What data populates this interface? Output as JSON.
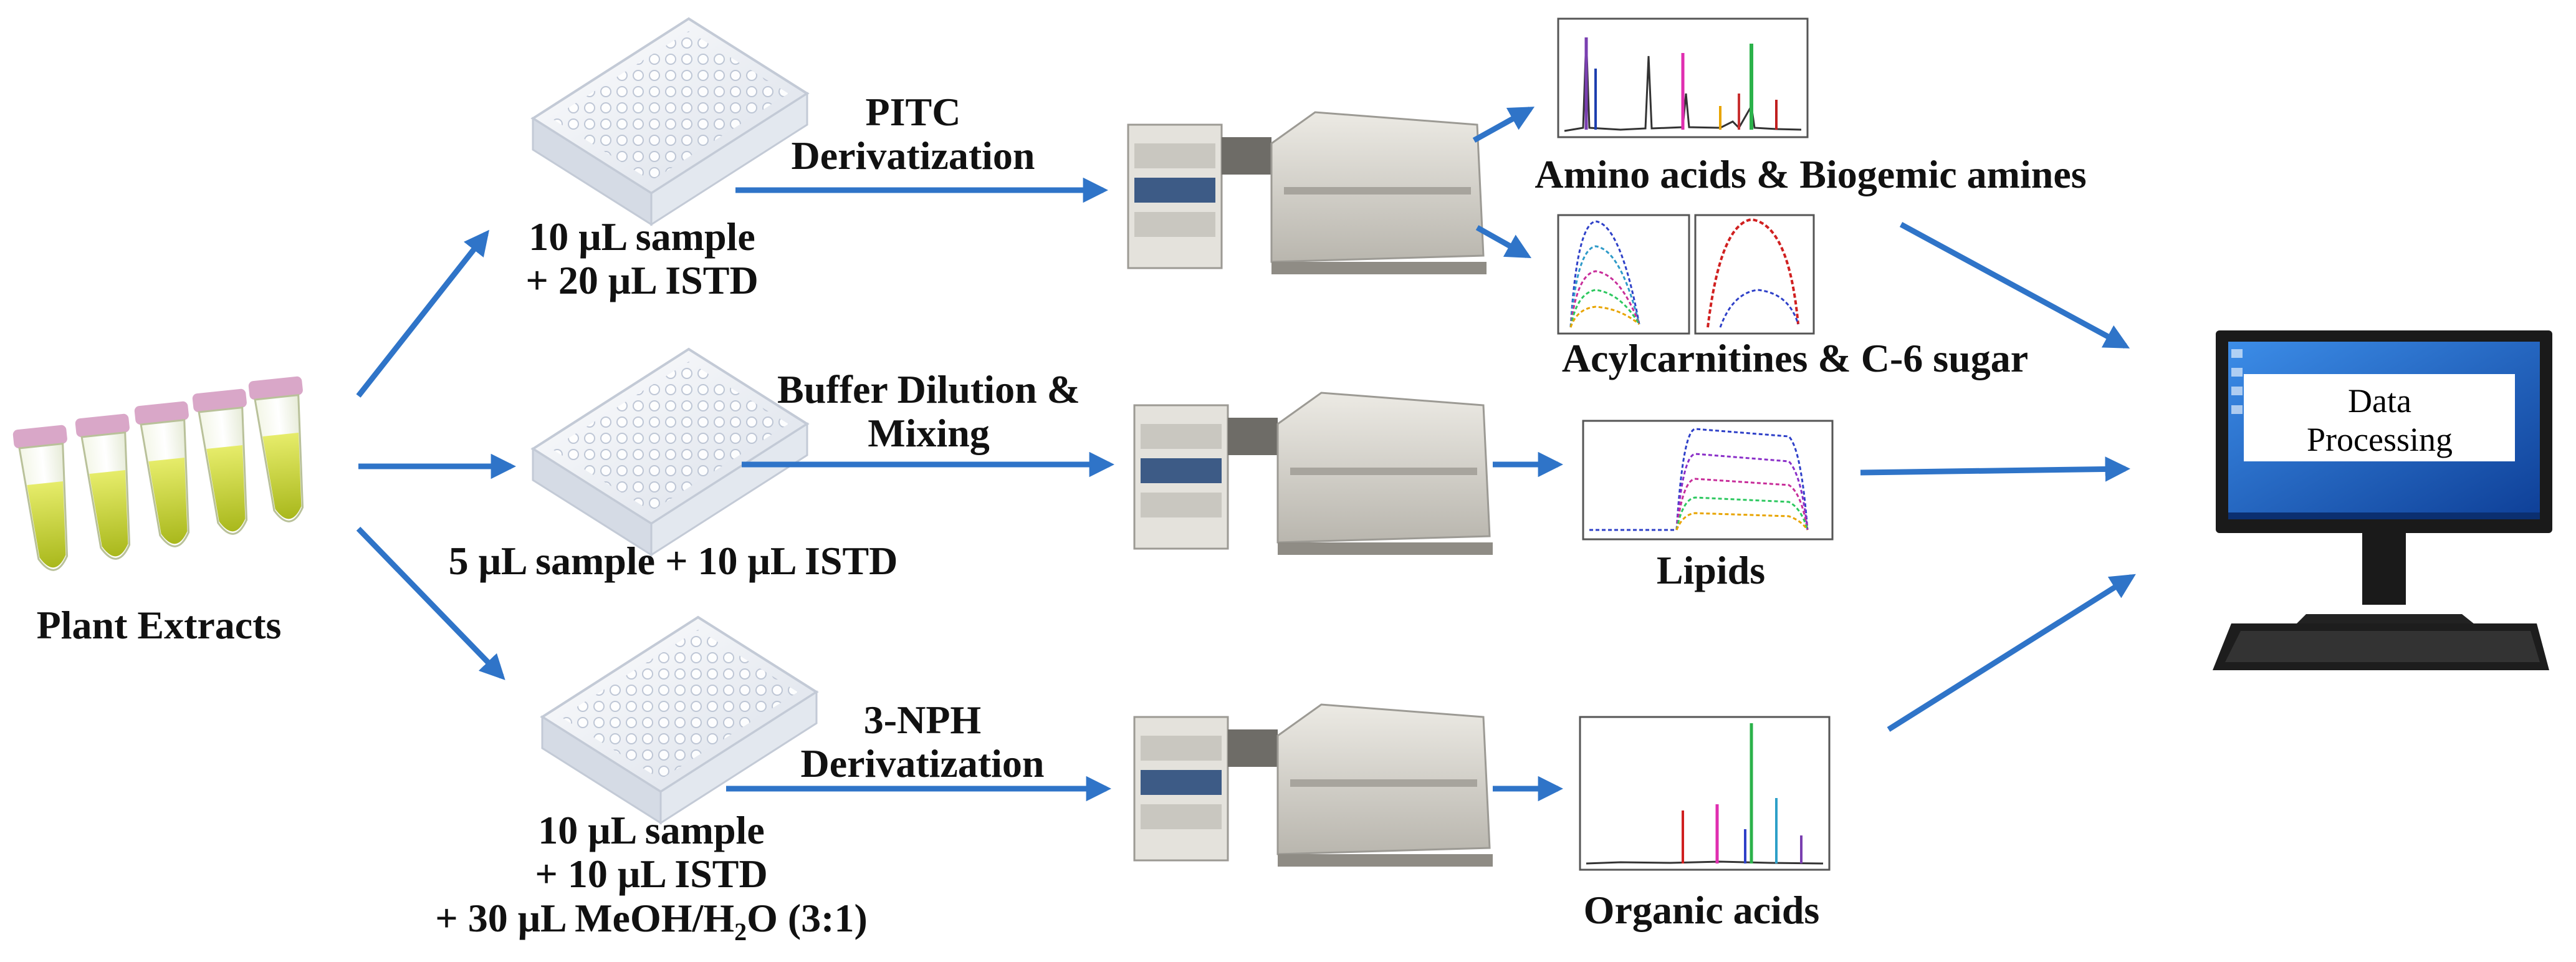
{
  "source": {
    "label": "Plant Extracts"
  },
  "pipelines": [
    {
      "name": "pitc",
      "step": [
        "PITC",
        "Derivatization"
      ],
      "sample": [
        "10 μL sample",
        "+ 20 μL ISTD"
      ],
      "outputs": [
        "Amino acids & Biogemic amines",
        "Acylcarnitines & C-6 sugar"
      ]
    },
    {
      "name": "buffer",
      "step": [
        "Buffer Dilution &",
        "Mixing"
      ],
      "sample": [
        "5 μL sample + 10 μL ISTD"
      ],
      "outputs": [
        "Lipids"
      ]
    },
    {
      "name": "nph",
      "step": [
        "3-NPH",
        "Derivatization"
      ],
      "sample": [
        "10 μL sample",
        "+ 10 μL ISTD",
        "+ 30 μL MeOH/H",
        "2",
        "O (3:1)"
      ],
      "outputs": [
        "Organic acids"
      ]
    }
  ],
  "computer": {
    "screen_line1": "Data",
    "screen_line2": "Processing"
  },
  "colors": {
    "arrow": "#2F74C8",
    "tube_liquid": "#C9D82A",
    "tube_cap": "#D9A7C8",
    "plate": "#EEF1F6",
    "instrument": "#D8D6CF",
    "monitor_screen": "#1E5FC1"
  }
}
